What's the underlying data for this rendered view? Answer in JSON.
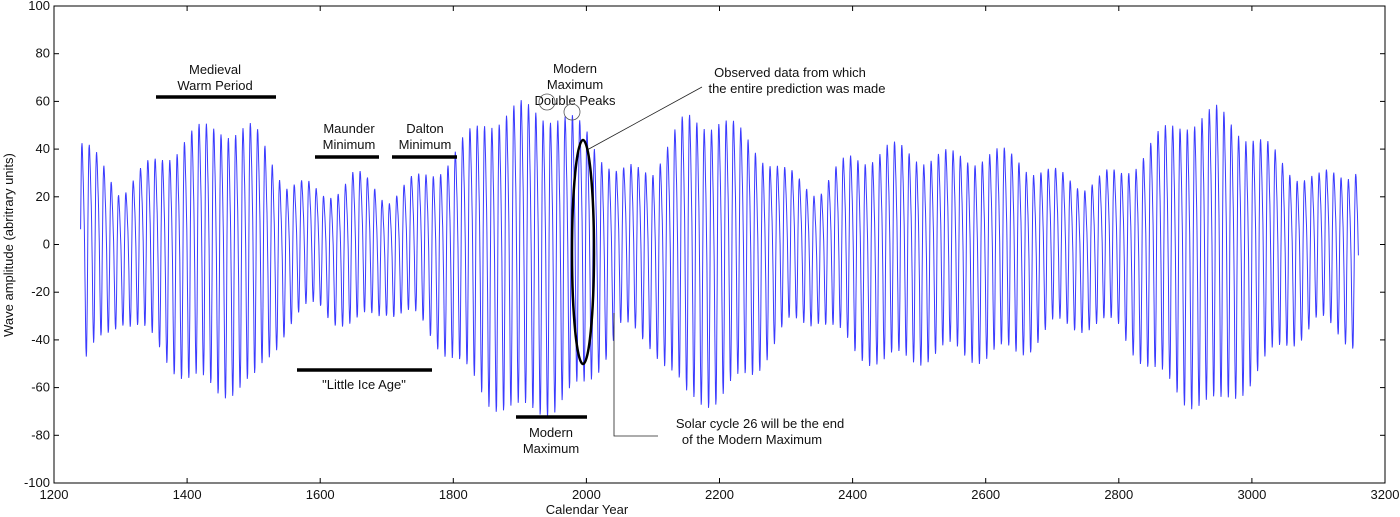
{
  "chart_data": {
    "type": "line",
    "title": "",
    "xlabel": "Calendar Year",
    "ylabel": "Wave amplitude (abritrary units)",
    "xlim": [
      1200,
      3200
    ],
    "ylim": [
      -100,
      100
    ],
    "x_ticks": [
      1200,
      1400,
      1600,
      1800,
      2000,
      2200,
      2400,
      2600,
      2800,
      3000,
      3200
    ],
    "y_ticks": [
      100,
      80,
      60,
      40,
      20,
      0,
      -20,
      -40,
      -60,
      -80,
      -100
    ],
    "grid": false,
    "series_color": "#3b3bff",
    "series": [
      {
        "x_start": 1240,
        "x_end": 3160,
        "cycle_years": 11,
        "envelope_years": [
          1240,
          1300,
          1350,
          1400,
          1450,
          1500,
          1550,
          1600,
          1650,
          1700,
          1750,
          1800,
          1850,
          1900,
          1950,
          2000,
          2050,
          2100,
          2150,
          2200,
          2250,
          2300,
          2350,
          2400,
          2450,
          2500,
          2550,
          2600,
          2650,
          2700,
          2750,
          2800,
          2850,
          2900,
          2950,
          3000,
          3050,
          3100,
          3160
        ],
        "envelope_amplitude": [
          45,
          25,
          35,
          48,
          52,
          50,
          28,
          22,
          30,
          22,
          28,
          40,
          55,
          60,
          58,
          50,
          30,
          35,
          55,
          55,
          45,
          30,
          25,
          38,
          42,
          40,
          38,
          40,
          38,
          30,
          28,
          30,
          45,
          55,
          58,
          48,
          35,
          28,
          35
        ],
        "peak_y": 64,
        "trough_y": -62
      }
    ]
  },
  "annotations": {
    "medieval": [
      "Medieval",
      "Warm Period"
    ],
    "maunder": [
      "Maunder",
      "Minimum"
    ],
    "dalton": [
      "Dalton",
      "Minimum"
    ],
    "modern_double": [
      "Modern",
      "Maximum",
      "Double Peaks"
    ],
    "observed": [
      "Observed data from which",
      "the entire prediction was made"
    ],
    "little_ice_age": "\"Little Ice Age\"",
    "modern_max": [
      "Modern",
      "Maximum"
    ],
    "solar_cycle": [
      "Solar cycle 26 will be the end",
      "of the Modern Maximum"
    ]
  }
}
